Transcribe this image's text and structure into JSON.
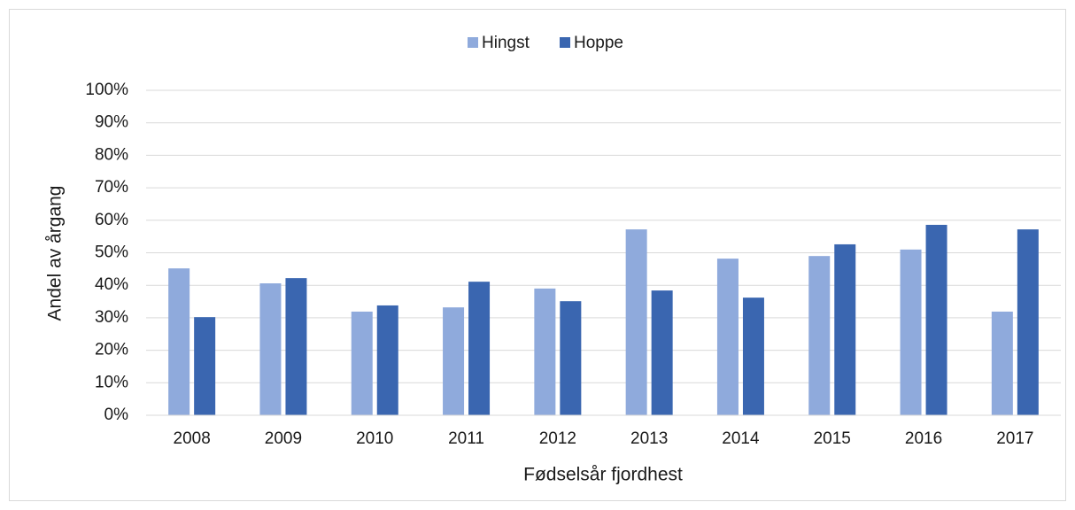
{
  "chart_data": {
    "type": "bar",
    "categories": [
      "2008",
      "2009",
      "2010",
      "2011",
      "2012",
      "2013",
      "2014",
      "2015",
      "2016",
      "2017"
    ],
    "series": [
      {
        "name": "Hingst",
        "color": "#8faadc",
        "values": [
          45.2,
          40.6,
          31.9,
          33.2,
          39,
          57.2,
          48.2,
          49,
          51,
          31.9
        ]
      },
      {
        "name": "Hoppe",
        "color": "#3a66b0",
        "values": [
          30.2,
          42.2,
          33.8,
          41.1,
          35.1,
          38.4,
          36.2,
          52.6,
          58.6,
          57.2
        ]
      }
    ],
    "xlabel": "Fødselsår fjordhest",
    "ylabel": "Andel av årgang",
    "ylim": [
      0,
      100
    ],
    "yticks": [
      {
        "value": 0,
        "label": "0%"
      },
      {
        "value": 10,
        "label": "10%"
      },
      {
        "value": 20,
        "label": "20%"
      },
      {
        "value": 30,
        "label": "30%"
      },
      {
        "value": 40,
        "label": "40%"
      },
      {
        "value": 50,
        "label": "50%"
      },
      {
        "value": 60,
        "label": "60%"
      },
      {
        "value": 70,
        "label": "70%"
      },
      {
        "value": 80,
        "label": "80%"
      },
      {
        "value": 90,
        "label": "90%"
      },
      {
        "value": 100,
        "label": "100%"
      }
    ],
    "grid": true,
    "legend": "top"
  }
}
